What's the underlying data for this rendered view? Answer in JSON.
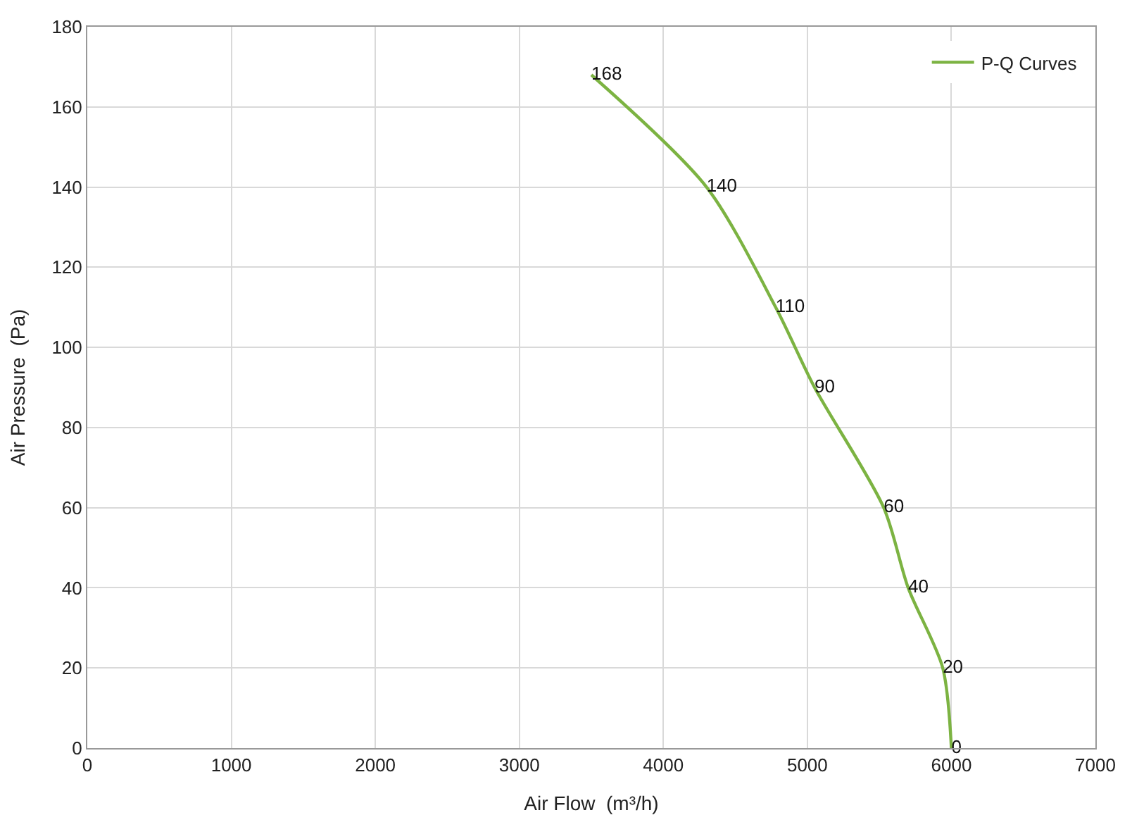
{
  "chart_data": {
    "type": "line",
    "xlabel": "Air Flow  (m³/h)",
    "ylabel": "Air Pressure  (Pa)",
    "x": [
      3500,
      4300,
      4780,
      5050,
      5530,
      5700,
      5940,
      6000
    ],
    "series": [
      {
        "name": "P-Q Curves",
        "color": "#7cb342",
        "values": [
          168,
          140,
          110,
          90,
          60,
          40,
          20,
          0
        ]
      }
    ],
    "xlim": [
      0,
      7000
    ],
    "xticks": [
      0,
      1000,
      2000,
      3000,
      4000,
      5000,
      6000,
      7000
    ],
    "ylim": [
      0,
      180
    ],
    "yticks": [
      0,
      20,
      40,
      60,
      80,
      100,
      120,
      140,
      160,
      180
    ],
    "grid": true,
    "legend": "top right",
    "marker": "none",
    "line_style": "solid",
    "data_labels": true
  }
}
